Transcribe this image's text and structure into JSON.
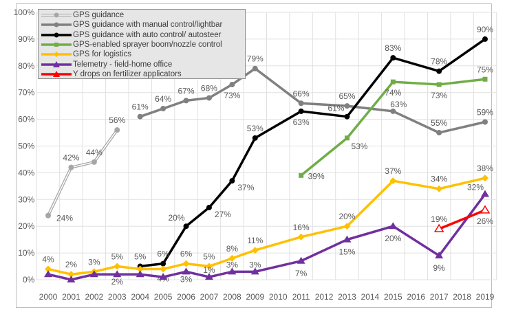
{
  "chart_data": {
    "type": "line",
    "x": [
      2000,
      2001,
      2002,
      2003,
      2004,
      2005,
      2006,
      2007,
      2008,
      2009,
      2010,
      2011,
      2012,
      2013,
      2014,
      2015,
      2016,
      2017,
      2018,
      2019
    ],
    "ylim": [
      0,
      100
    ],
    "yticks": [
      "0%",
      "10%",
      "20%",
      "30%",
      "40%",
      "50%",
      "60%",
      "70%",
      "80%",
      "90%",
      "100%"
    ],
    "grid": true,
    "legend_position": "top-left",
    "series": [
      {
        "name": "GPS guidance",
        "color": "#a6a6a6",
        "marker": "circle",
        "style": "double",
        "points": [
          [
            2000,
            24
          ],
          [
            2001,
            42
          ],
          [
            2002,
            44
          ],
          [
            2003,
            56
          ]
        ]
      },
      {
        "name": "GPS guidance with manual control/lightbar",
        "color": "#808080",
        "marker": "circle",
        "points": [
          [
            2004,
            61
          ],
          [
            2005,
            64
          ],
          [
            2006,
            67
          ],
          [
            2007,
            68
          ],
          [
            2008,
            73
          ],
          [
            2009,
            79
          ],
          [
            2011,
            66
          ],
          [
            2013,
            65
          ],
          [
            2015,
            63
          ],
          [
            2017,
            55
          ],
          [
            2019,
            59
          ]
        ]
      },
      {
        "name": "GPS guidance with auto control/ autosteer",
        "color": "#000000",
        "marker": "circle",
        "points": [
          [
            2004,
            5
          ],
          [
            2005,
            6
          ],
          [
            2006,
            20
          ],
          [
            2007,
            27
          ],
          [
            2008,
            37
          ],
          [
            2009,
            53
          ],
          [
            2011,
            63
          ],
          [
            2013,
            61
          ],
          [
            2015,
            83
          ],
          [
            2017,
            78
          ],
          [
            2019,
            90
          ]
        ]
      },
      {
        "name": "GPS-enabled sprayer boom/nozzle control",
        "color": "#70ad47",
        "marker": "square",
        "points": [
          [
            2011,
            39
          ],
          [
            2013,
            53
          ],
          [
            2015,
            74
          ],
          [
            2017,
            73
          ],
          [
            2019,
            75
          ]
        ]
      },
      {
        "name": "GPS for logistics",
        "color": "#ffc000",
        "marker": "diamond",
        "points": [
          [
            2000,
            4
          ],
          [
            2001,
            2
          ],
          [
            2002,
            3
          ],
          [
            2003,
            5
          ],
          [
            2004,
            4
          ],
          [
            2005,
            4
          ],
          [
            2006,
            6
          ],
          [
            2007,
            5
          ],
          [
            2008,
            8
          ],
          [
            2009,
            11
          ],
          [
            2011,
            16
          ],
          [
            2013,
            20
          ],
          [
            2015,
            37
          ],
          [
            2017,
            34
          ],
          [
            2019,
            38
          ]
        ]
      },
      {
        "name": "Telemetry - field-home office",
        "color": "#7030a0",
        "marker": "triangle",
        "points": [
          [
            2000,
            2
          ],
          [
            2001,
            0
          ],
          [
            2002,
            2
          ],
          [
            2003,
            2
          ],
          [
            2004,
            2
          ],
          [
            2005,
            1
          ],
          [
            2006,
            3
          ],
          [
            2007,
            1
          ],
          [
            2008,
            3
          ],
          [
            2009,
            3
          ],
          [
            2011,
            7
          ],
          [
            2013,
            15
          ],
          [
            2015,
            20
          ],
          [
            2017,
            9
          ],
          [
            2019,
            32
          ]
        ]
      },
      {
        "name": "Y drops on fertilizer applicators",
        "color": "#ff0000",
        "marker": "triangle-open",
        "points": [
          [
            2017,
            19
          ],
          [
            2019,
            26
          ]
        ]
      }
    ]
  }
}
